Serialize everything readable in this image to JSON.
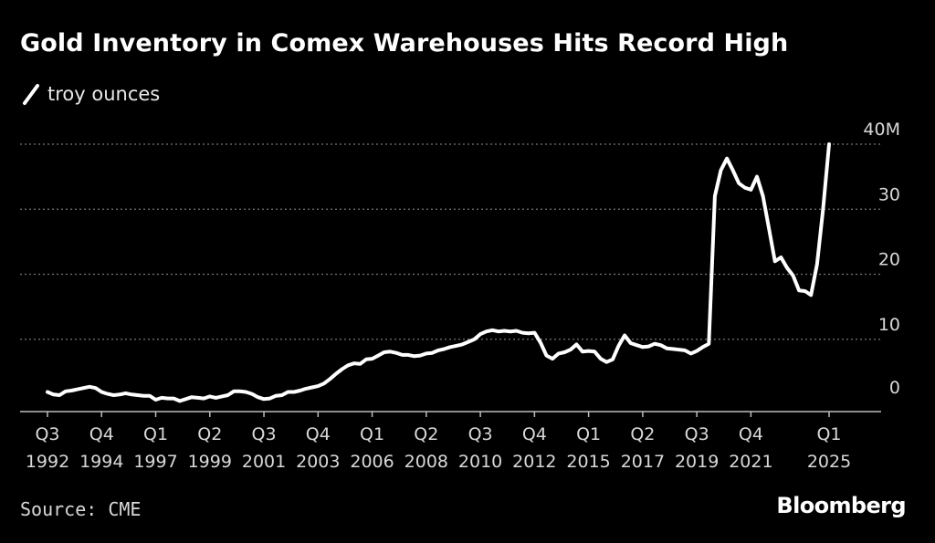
{
  "title": "Gold Inventory in Comex Warehouses Hits Record High",
  "legend": {
    "label": "troy ounces"
  },
  "source": "Source: CME",
  "brand": "Bloomberg",
  "colors": {
    "background": "#000000",
    "line": "#ffffff",
    "grid": "#777777"
  },
  "chart_data": {
    "type": "line",
    "title": "Gold Inventory in Comex Warehouses Hits Record High",
    "ylabel": "troy ounces",
    "ylim": [
      0,
      40
    ],
    "yticks": [
      {
        "value": 0,
        "label": "0"
      },
      {
        "value": 10,
        "label": "10"
      },
      {
        "value": 20,
        "label": "20"
      },
      {
        "value": 30,
        "label": "30"
      },
      {
        "value": 40,
        "label": "40M"
      }
    ],
    "xlim": [
      1992.5,
      2027.0
    ],
    "xticks": [
      {
        "x": 1992.5,
        "q": "Q3",
        "year": "1992"
      },
      {
        "x": 1994.75,
        "q": "Q4",
        "year": "1994"
      },
      {
        "x": 1997.0,
        "q": "Q1",
        "year": "1997"
      },
      {
        "x": 1999.25,
        "q": "Q2",
        "year": "1999"
      },
      {
        "x": 2001.5,
        "q": "Q3",
        "year": "2001"
      },
      {
        "x": 2003.75,
        "q": "Q4",
        "year": "2003"
      },
      {
        "x": 2006.0,
        "q": "Q1",
        "year": "2006"
      },
      {
        "x": 2008.25,
        "q": "Q2",
        "year": "2008"
      },
      {
        "x": 2010.5,
        "q": "Q3",
        "year": "2010"
      },
      {
        "x": 2012.75,
        "q": "Q4",
        "year": "2012"
      },
      {
        "x": 2015.0,
        "q": "Q1",
        "year": "2015"
      },
      {
        "x": 2017.25,
        "q": "Q2",
        "year": "2017"
      },
      {
        "x": 2019.5,
        "q": "Q3",
        "year": "2019"
      },
      {
        "x": 2021.75,
        "q": "Q4",
        "year": "2021"
      },
      {
        "x": 2025.0,
        "q": "Q1",
        "year": "2025"
      }
    ],
    "series": [
      {
        "points": [
          [
            1992.5,
            1.9
          ],
          [
            1992.75,
            1.5
          ],
          [
            1993.0,
            1.4
          ],
          [
            1993.25,
            2.0
          ],
          [
            1993.5,
            2.1
          ],
          [
            1993.75,
            2.3
          ],
          [
            1994.0,
            2.5
          ],
          [
            1994.25,
            2.7
          ],
          [
            1994.5,
            2.5
          ],
          [
            1994.75,
            1.9
          ],
          [
            1995.0,
            1.6
          ],
          [
            1995.25,
            1.4
          ],
          [
            1995.5,
            1.5
          ],
          [
            1995.75,
            1.7
          ],
          [
            1996.0,
            1.5
          ],
          [
            1996.25,
            1.4
          ],
          [
            1996.5,
            1.3
          ],
          [
            1996.75,
            1.3
          ],
          [
            1997.0,
            0.7
          ],
          [
            1997.25,
            1.0
          ],
          [
            1997.5,
            0.9
          ],
          [
            1997.75,
            0.9
          ],
          [
            1998.0,
            0.5
          ],
          [
            1998.25,
            0.8
          ],
          [
            1998.5,
            1.1
          ],
          [
            1998.75,
            1.0
          ],
          [
            1999.0,
            0.9
          ],
          [
            1999.25,
            1.2
          ],
          [
            1999.5,
            1.0
          ],
          [
            1999.75,
            1.2
          ],
          [
            2000.0,
            1.4
          ],
          [
            2000.25,
            2.0
          ],
          [
            2000.5,
            2.0
          ],
          [
            2000.75,
            1.9
          ],
          [
            2001.0,
            1.6
          ],
          [
            2001.25,
            1.1
          ],
          [
            2001.5,
            0.8
          ],
          [
            2001.75,
            0.9
          ],
          [
            2002.0,
            1.3
          ],
          [
            2002.25,
            1.4
          ],
          [
            2002.5,
            1.9
          ],
          [
            2002.75,
            1.9
          ],
          [
            2003.0,
            2.1
          ],
          [
            2003.25,
            2.4
          ],
          [
            2003.5,
            2.6
          ],
          [
            2003.75,
            2.8
          ],
          [
            2004.0,
            3.2
          ],
          [
            2004.25,
            3.9
          ],
          [
            2004.5,
            4.7
          ],
          [
            2004.75,
            5.4
          ],
          [
            2005.0,
            6.0
          ],
          [
            2005.25,
            6.3
          ],
          [
            2005.5,
            6.2
          ],
          [
            2005.75,
            6.9
          ],
          [
            2006.0,
            7.0
          ],
          [
            2006.25,
            7.5
          ],
          [
            2006.5,
            8.0
          ],
          [
            2006.75,
            8.1
          ],
          [
            2007.0,
            7.9
          ],
          [
            2007.25,
            7.6
          ],
          [
            2007.5,
            7.6
          ],
          [
            2007.75,
            7.4
          ],
          [
            2008.0,
            7.5
          ],
          [
            2008.25,
            7.8
          ],
          [
            2008.5,
            7.9
          ],
          [
            2008.75,
            8.3
          ],
          [
            2009.0,
            8.5
          ],
          [
            2009.25,
            8.8
          ],
          [
            2009.5,
            9.0
          ],
          [
            2009.75,
            9.2
          ],
          [
            2010.0,
            9.6
          ],
          [
            2010.25,
            10.0
          ],
          [
            2010.5,
            10.8
          ],
          [
            2010.75,
            11.2
          ],
          [
            2011.0,
            11.4
          ],
          [
            2011.25,
            11.2
          ],
          [
            2011.5,
            11.3
          ],
          [
            2011.75,
            11.2
          ],
          [
            2012.0,
            11.3
          ],
          [
            2012.25,
            11.0
          ],
          [
            2012.5,
            10.9
          ],
          [
            2012.75,
            11.0
          ],
          [
            2013.0,
            9.5
          ],
          [
            2013.25,
            7.5
          ],
          [
            2013.5,
            7.0
          ],
          [
            2013.75,
            7.8
          ],
          [
            2014.0,
            8.0
          ],
          [
            2014.25,
            8.4
          ],
          [
            2014.5,
            9.2
          ],
          [
            2014.75,
            8.1
          ],
          [
            2015.0,
            8.2
          ],
          [
            2015.25,
            8.1
          ],
          [
            2015.5,
            7.0
          ],
          [
            2015.75,
            6.5
          ],
          [
            2016.0,
            6.9
          ],
          [
            2016.25,
            9.0
          ],
          [
            2016.5,
            10.6
          ],
          [
            2016.75,
            9.4
          ],
          [
            2017.0,
            9.1
          ],
          [
            2017.25,
            8.8
          ],
          [
            2017.5,
            8.9
          ],
          [
            2017.75,
            9.3
          ],
          [
            2018.0,
            9.1
          ],
          [
            2018.25,
            8.6
          ],
          [
            2018.5,
            8.5
          ],
          [
            2018.75,
            8.4
          ],
          [
            2019.0,
            8.3
          ],
          [
            2019.25,
            7.8
          ],
          [
            2019.5,
            8.2
          ],
          [
            2019.75,
            8.8
          ],
          [
            2020.0,
            9.3
          ],
          [
            2020.25,
            32.0
          ],
          [
            2020.5,
            36.0
          ],
          [
            2020.75,
            37.8
          ],
          [
            2021.0,
            36.0
          ],
          [
            2021.25,
            34.0
          ],
          [
            2021.5,
            33.3
          ],
          [
            2021.75,
            33.0
          ],
          [
            2022.0,
            35.0
          ],
          [
            2022.25,
            32.0
          ],
          [
            2022.5,
            27.0
          ],
          [
            2022.75,
            22.0
          ],
          [
            2023.0,
            22.6
          ],
          [
            2023.25,
            21.0
          ],
          [
            2023.5,
            19.8
          ],
          [
            2023.75,
            17.5
          ],
          [
            2024.0,
            17.4
          ],
          [
            2024.25,
            16.8
          ],
          [
            2024.5,
            21.5
          ],
          [
            2024.75,
            30.0
          ],
          [
            2025.0,
            40.0
          ]
        ]
      }
    ],
    "grid": true,
    "legend_position": "top-left"
  }
}
